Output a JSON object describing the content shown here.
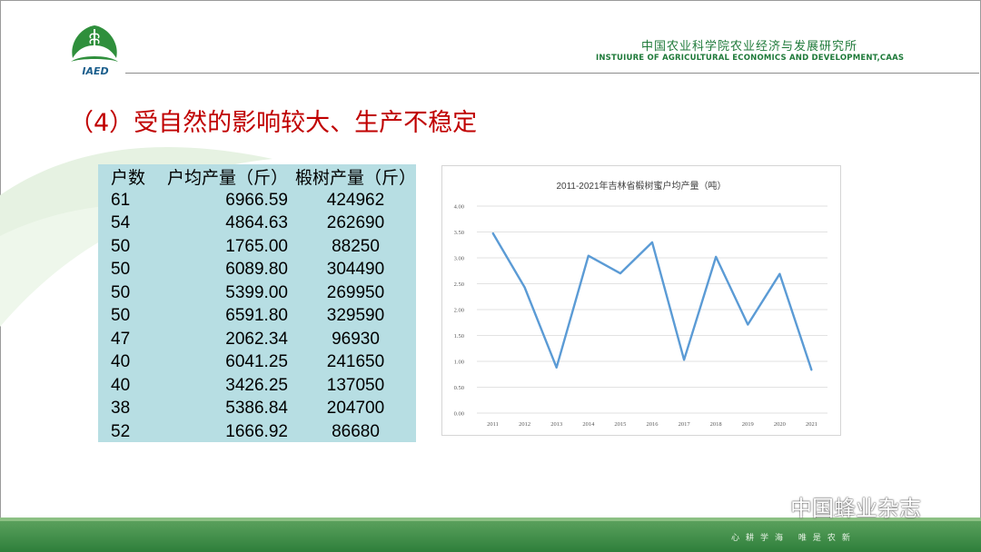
{
  "header": {
    "logo_text": "IAED",
    "org_cn": "中国农业科学院农业经济与发展研究所",
    "org_en": "INSTUIURE OF AGRICULTURAL ECONOMICS AND DEVELOPMENT,CAAS"
  },
  "slide": {
    "title": "（4）受自然的影响较大、生产不稳定"
  },
  "table": {
    "headers": [
      "户数",
      "户均产量（斤）",
      "椴树产量（斤）"
    ],
    "rows": [
      [
        "61",
        "6966.59",
        "424962"
      ],
      [
        "54",
        "4864.63",
        "262690"
      ],
      [
        "50",
        "1765.00",
        "88250"
      ],
      [
        "50",
        "6089.80",
        "304490"
      ],
      [
        "50",
        "5399.00",
        "269950"
      ],
      [
        "50",
        "6591.80",
        "329590"
      ],
      [
        "47",
        "2062.34",
        "96930"
      ],
      [
        "40",
        "6041.25",
        "241650"
      ],
      [
        "40",
        "3426.25",
        "137050"
      ],
      [
        "38",
        "5386.84",
        "204700"
      ],
      [
        "52",
        "1666.92",
        "86680"
      ]
    ]
  },
  "chart_data": {
    "type": "line",
    "title": "2011-2021年吉林省椴树蜜户均产量（吨）",
    "x": [
      "2011",
      "2012",
      "2013",
      "2014",
      "2015",
      "2016",
      "2017",
      "2018",
      "2019",
      "2020",
      "2021"
    ],
    "series": [
      {
        "values": [
          3.48,
          2.43,
          0.88,
          3.04,
          2.7,
          3.3,
          1.03,
          3.02,
          1.71,
          2.69,
          0.83
        ]
      }
    ],
    "yticks": [
      "0.00",
      "0.50",
      "1.00",
      "1.50",
      "2.00",
      "2.50",
      "3.00",
      "3.50",
      "4.00"
    ],
    "ylim": [
      0,
      4
    ],
    "grid": true,
    "line_color": "#5b9bd5"
  },
  "footer": {
    "motto": "心耕学海 唯是农新"
  },
  "watermark": {
    "text": "中国蜂业杂志"
  }
}
